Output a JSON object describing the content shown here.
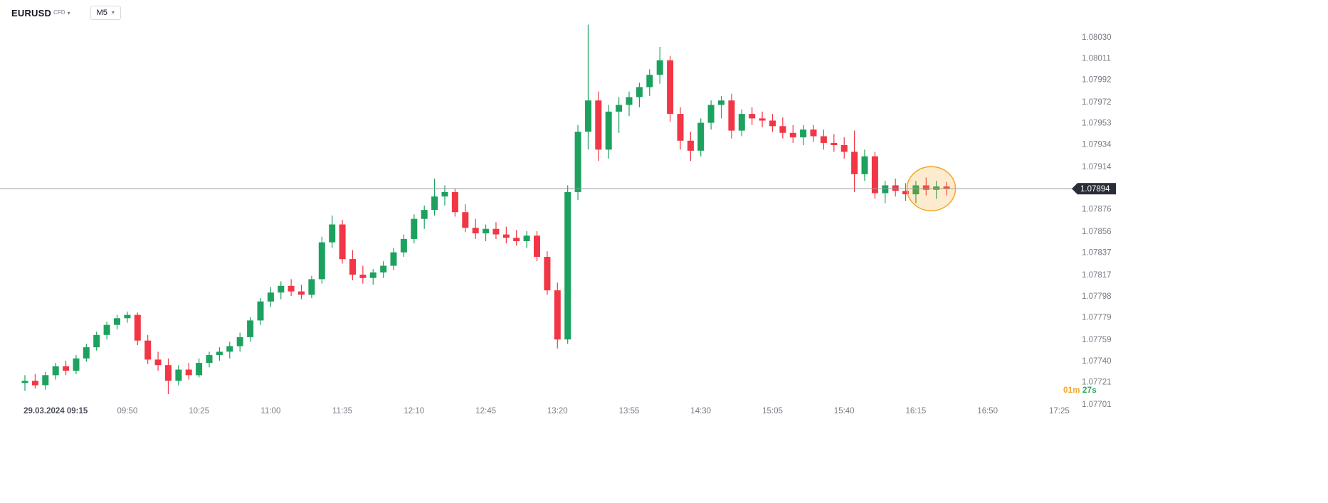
{
  "header": {
    "symbol": "EURUSD",
    "market_type": "CFD",
    "timeframe": "M5"
  },
  "countdown": {
    "minutes": "01m",
    "seconds": "27s",
    "minutes_color": "#f5a623",
    "seconds_color": "#2fa35c"
  },
  "chart_data": {
    "type": "candlestick",
    "title": "EURUSD CFD, M5",
    "ylim": [
      1.07703,
      1.08063
    ],
    "current_price": 1.07894,
    "current_price_label": "1.07894",
    "colors": {
      "up": "#1da15f",
      "down": "#f23645",
      "price_line": "#9598a1",
      "badge_bg": "#2a2e39",
      "badge_text": "#ffffff",
      "axis_text": "#787b86",
      "first_time_label": "#4a4e59",
      "highlight": "#f5a623",
      "highlight_fill": "rgba(245,166,35,0.22)"
    },
    "price_axis": [
      "1.08030",
      "1.08011",
      "1.07992",
      "1.07972",
      "1.07953",
      "1.07934",
      "1.07914",
      "1.07876",
      "1.07856",
      "1.07837",
      "1.07817",
      "1.07798",
      "1.07779",
      "1.07759",
      "1.07740",
      "1.07721",
      "1.07701"
    ],
    "x_axis": {
      "labels": [
        "29.03.2024 09:15",
        "09:50",
        "10:25",
        "11:00",
        "11:35",
        "12:10",
        "12:45",
        "13:20",
        "13:55",
        "14:30",
        "15:05",
        "15:40",
        "16:15",
        "16:50",
        "17:25"
      ],
      "first_label_candle_index": 3,
      "candles_per_label": 7
    },
    "start_time": "09:00",
    "interval_minutes": 5,
    "candles": [
      [
        1.0772,
        1.07727,
        1.07713,
        1.07722
      ],
      [
        1.07722,
        1.07728,
        1.07715,
        1.07718
      ],
      [
        1.07718,
        1.0773,
        1.07714,
        1.07727
      ],
      [
        1.07727,
        1.07738,
        1.07723,
        1.07735
      ],
      [
        1.07735,
        1.0774,
        1.07727,
        1.07731
      ],
      [
        1.07731,
        1.07745,
        1.07728,
        1.07742
      ],
      [
        1.07742,
        1.07755,
        1.07739,
        1.07752
      ],
      [
        1.07752,
        1.07766,
        1.07749,
        1.07763
      ],
      [
        1.07763,
        1.07775,
        1.07759,
        1.07772
      ],
      [
        1.07772,
        1.07781,
        1.07768,
        1.07778
      ],
      [
        1.07778,
        1.07784,
        1.07774,
        1.07781
      ],
      [
        1.07781,
        1.07783,
        1.07754,
        1.07758
      ],
      [
        1.07758,
        1.07763,
        1.07737,
        1.07741
      ],
      [
        1.07741,
        1.07748,
        1.07731,
        1.07736
      ],
      [
        1.07736,
        1.07742,
        1.0771,
        1.07722
      ],
      [
        1.07722,
        1.07736,
        1.07718,
        1.07732
      ],
      [
        1.07732,
        1.07738,
        1.07723,
        1.07727
      ],
      [
        1.07727,
        1.07742,
        1.07725,
        1.07738
      ],
      [
        1.07738,
        1.07748,
        1.07734,
        1.07745
      ],
      [
        1.07745,
        1.07752,
        1.0774,
        1.07748
      ],
      [
        1.07748,
        1.07757,
        1.07742,
        1.07753
      ],
      [
        1.07753,
        1.07765,
        1.07748,
        1.07761
      ],
      [
        1.07761,
        1.07779,
        1.07757,
        1.07776
      ],
      [
        1.07776,
        1.07796,
        1.07772,
        1.07793
      ],
      [
        1.07793,
        1.07806,
        1.07788,
        1.07801
      ],
      [
        1.07801,
        1.07811,
        1.07795,
        1.07807
      ],
      [
        1.07807,
        1.07813,
        1.07798,
        1.07802
      ],
      [
        1.07802,
        1.07808,
        1.07795,
        1.07799
      ],
      [
        1.07799,
        1.07816,
        1.07796,
        1.07813
      ],
      [
        1.07813,
        1.07851,
        1.07809,
        1.07846
      ],
      [
        1.07846,
        1.0787,
        1.07841,
        1.07862
      ],
      [
        1.07862,
        1.07866,
        1.07827,
        1.07831
      ],
      [
        1.07831,
        1.07839,
        1.07812,
        1.07817
      ],
      [
        1.07817,
        1.07825,
        1.07809,
        1.07814
      ],
      [
        1.07814,
        1.07822,
        1.07808,
        1.07819
      ],
      [
        1.07819,
        1.07829,
        1.07814,
        1.07825
      ],
      [
        1.07825,
        1.07841,
        1.07821,
        1.07837
      ],
      [
        1.07837,
        1.07853,
        1.07833,
        1.07849
      ],
      [
        1.07849,
        1.07871,
        1.07845,
        1.07867
      ],
      [
        1.07867,
        1.07879,
        1.07858,
        1.07875
      ],
      [
        1.07875,
        1.07903,
        1.0787,
        1.07887
      ],
      [
        1.07887,
        1.07897,
        1.07879,
        1.07891
      ],
      [
        1.07891,
        1.07894,
        1.07869,
        1.07873
      ],
      [
        1.07873,
        1.0788,
        1.07855,
        1.07859
      ],
      [
        1.07859,
        1.07867,
        1.07849,
        1.07854
      ],
      [
        1.07854,
        1.07862,
        1.07847,
        1.07858
      ],
      [
        1.07858,
        1.07864,
        1.07849,
        1.07853
      ],
      [
        1.07853,
        1.0786,
        1.07845,
        1.0785
      ],
      [
        1.0785,
        1.07857,
        1.07843,
        1.07847
      ],
      [
        1.07847,
        1.07856,
        1.07841,
        1.07852
      ],
      [
        1.07852,
        1.07856,
        1.07829,
        1.07833
      ],
      [
        1.07833,
        1.07838,
        1.07799,
        1.07803
      ],
      [
        1.07803,
        1.0781,
        1.07751,
        1.07759
      ],
      [
        1.07759,
        1.07897,
        1.07755,
        1.07891
      ],
      [
        1.07891,
        1.07951,
        1.07884,
        1.07945
      ],
      [
        1.07945,
        1.08041,
        1.07929,
        1.07973
      ],
      [
        1.07973,
        1.07981,
        1.07919,
        1.07929
      ],
      [
        1.07929,
        1.07969,
        1.07921,
        1.07963
      ],
      [
        1.07963,
        1.07976,
        1.07944,
        1.07969
      ],
      [
        1.07969,
        1.07981,
        1.07959,
        1.07976
      ],
      [
        1.07976,
        1.07989,
        1.07967,
        1.07985
      ],
      [
        1.07985,
        1.08001,
        1.07977,
        1.07996
      ],
      [
        1.07996,
        1.08021,
        1.07988,
        1.08009
      ],
      [
        1.08009,
        1.08013,
        1.07954,
        1.07961
      ],
      [
        1.07961,
        1.07967,
        1.07929,
        1.07937
      ],
      [
        1.07937,
        1.07945,
        1.07919,
        1.07928
      ],
      [
        1.07928,
        1.07957,
        1.07923,
        1.07953
      ],
      [
        1.07953,
        1.07973,
        1.07947,
        1.07969
      ],
      [
        1.07969,
        1.07977,
        1.07957,
        1.07973
      ],
      [
        1.07973,
        1.07979,
        1.07939,
        1.07946
      ],
      [
        1.07946,
        1.07965,
        1.07941,
        1.07961
      ],
      [
        1.07961,
        1.07967,
        1.07951,
        1.07957
      ],
      [
        1.07957,
        1.07963,
        1.07949,
        1.07955
      ],
      [
        1.07955,
        1.07961,
        1.07945,
        1.0795
      ],
      [
        1.0795,
        1.07958,
        1.07939,
        1.07944
      ],
      [
        1.07944,
        1.07951,
        1.07935,
        1.0794
      ],
      [
        1.0794,
        1.07951,
        1.07933,
        1.07947
      ],
      [
        1.07947,
        1.07951,
        1.07936,
        1.07941
      ],
      [
        1.07941,
        1.07947,
        1.07929,
        1.07935
      ],
      [
        1.07935,
        1.07943,
        1.07927,
        1.07933
      ],
      [
        1.07933,
        1.0794,
        1.07921,
        1.07927
      ],
      [
        1.07927,
        1.07946,
        1.07891,
        1.07907
      ],
      [
        1.07907,
        1.07929,
        1.07901,
        1.07923
      ],
      [
        1.07923,
        1.07927,
        1.07885,
        1.0789
      ],
      [
        1.0789,
        1.07901,
        1.07881,
        1.07897
      ],
      [
        1.07897,
        1.07903,
        1.07887,
        1.07892
      ],
      [
        1.07892,
        1.07899,
        1.07883,
        1.07889
      ],
      [
        1.07889,
        1.07901,
        1.07881,
        1.07897
      ],
      [
        1.07897,
        1.07904,
        1.07888,
        1.07893
      ],
      [
        1.07893,
        1.07901,
        1.07885,
        1.07896
      ],
      [
        1.07896,
        1.079,
        1.07888,
        1.07894
      ]
    ],
    "highlight": {
      "from_index": 87,
      "to_index": 90,
      "price": 1.07894
    }
  }
}
